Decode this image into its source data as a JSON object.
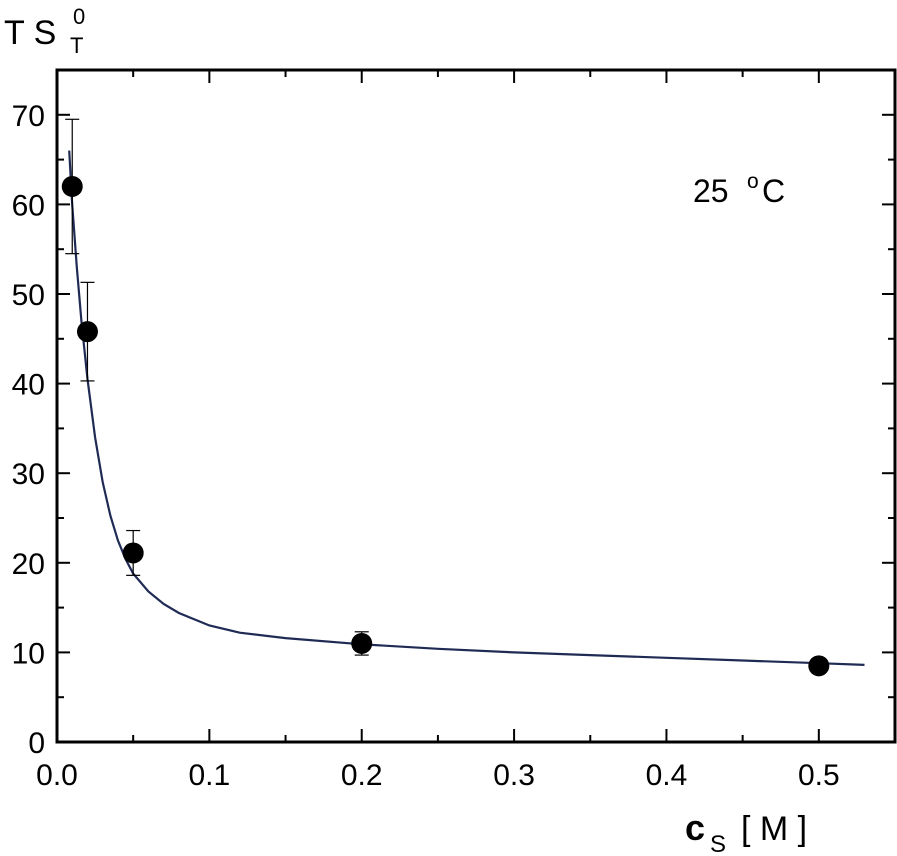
{
  "chart_data": {
    "type": "scatter",
    "ylabel": {
      "main": "T S",
      "sup": "0",
      "sub": "T"
    },
    "xlabel": {
      "main": "c",
      "sub": "S",
      "unit": "[ M ]"
    },
    "annotation": {
      "value": "25 ",
      "sup": "o",
      "unit": "C"
    },
    "xlim": [
      0.0,
      0.55
    ],
    "ylim": [
      0,
      75
    ],
    "x_ticks": [
      "0.0",
      "0.1",
      "0.2",
      "0.3",
      "0.4",
      "0.5"
    ],
    "x_tick_values": [
      0.0,
      0.1,
      0.2,
      0.3,
      0.4,
      0.5
    ],
    "y_ticks": [
      "0",
      "10",
      "20",
      "30",
      "40",
      "50",
      "60",
      "70"
    ],
    "y_tick_values": [
      0,
      10,
      20,
      30,
      40,
      50,
      60,
      70
    ],
    "points": [
      {
        "x": 0.01,
        "y": 62.0,
        "err": 7.5
      },
      {
        "x": 0.02,
        "y": 45.8,
        "err": 5.5
      },
      {
        "x": 0.05,
        "y": 21.1,
        "err": 2.5
      },
      {
        "x": 0.2,
        "y": 11.0,
        "err": 1.3
      },
      {
        "x": 0.5,
        "y": 8.5,
        "err": 0.6
      }
    ],
    "fit_curve": {
      "x": [
        0.008,
        0.01,
        0.013,
        0.016,
        0.02,
        0.025,
        0.03,
        0.035,
        0.04,
        0.045,
        0.05,
        0.06,
        0.07,
        0.08,
        0.1,
        0.12,
        0.15,
        0.2,
        0.25,
        0.3,
        0.35,
        0.4,
        0.45,
        0.5,
        0.53
      ],
      "y": [
        66.0,
        60.0,
        53.0,
        47.0,
        40.5,
        34.0,
        29.0,
        25.3,
        22.5,
        20.4,
        18.8,
        16.8,
        15.4,
        14.4,
        13.0,
        12.2,
        11.6,
        10.9,
        10.4,
        10.0,
        9.7,
        9.4,
        9.1,
        8.8,
        8.6
      ]
    },
    "colors": {
      "points": "#000000",
      "fit": "#1f2b55",
      "axes": "#000000"
    },
    "grid": false
  }
}
